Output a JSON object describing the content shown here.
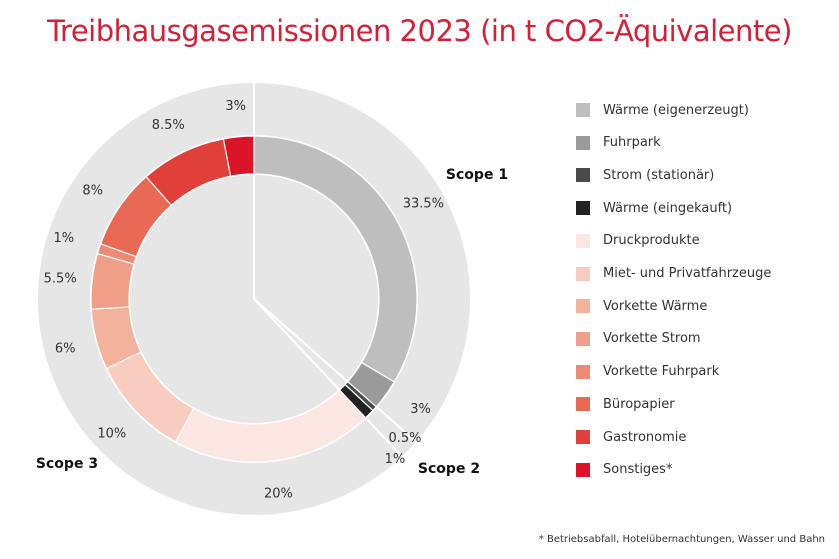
{
  "title": "Treibhausgasemissionen 2023 (in t CO2-Äquivalente)",
  "footnote": "*  Betriebsabfall, Hotelübernachtungen, Wasser und Bahn",
  "chart_data": {
    "type": "pie",
    "subtype": "double-donut",
    "title": "Treibhausgasemissionen 2023 (in t CO2-Äquivalente)",
    "legend_position": "right",
    "slices": [
      {
        "label": "Wärme (eigenerzeugt)",
        "value": 33.5,
        "display": "33.5%",
        "scope": "Scope 1",
        "color": "#bebebe"
      },
      {
        "label": "Fuhrpark",
        "value": 3,
        "display": "3%",
        "scope": "Scope 1",
        "color": "#9a9a9a"
      },
      {
        "label": "Strom (stationär)",
        "value": 0.5,
        "display": "0.5%",
        "scope": "Scope 2",
        "color": "#4a4a4a"
      },
      {
        "label": "Wärme (eingekauft)",
        "value": 1,
        "display": "1%",
        "scope": "Scope 2",
        "color": "#222222"
      },
      {
        "label": "Druckprodukte",
        "value": 20,
        "display": "20%",
        "scope": "Scope 3",
        "color": "#fbe6e2"
      },
      {
        "label": "Miet- und Privatfahrzeuge",
        "value": 10,
        "display": "10%",
        "scope": "Scope 3",
        "color": "#f8cdbf"
      },
      {
        "label": "Vorkette Wärme",
        "value": 6,
        "display": "6%",
        "scope": "Scope 3",
        "color": "#f2b29c"
      },
      {
        "label": "Vorkette Strom",
        "value": 5.5,
        "display": "5.5%",
        "scope": "Scope 3",
        "color": "#ef9f88"
      },
      {
        "label": "Vorkette Fuhrpark",
        "value": 1,
        "display": "1%",
        "scope": "Scope 3",
        "color": "#ec8a76"
      },
      {
        "label": "Büropapier",
        "value": 8,
        "display": "8%",
        "scope": "Scope 3",
        "color": "#e86a55"
      },
      {
        "label": "Gastronomie",
        "value": 8.5,
        "display": "8.5%",
        "scope": "Scope 3",
        "color": "#e1403a"
      },
      {
        "label": "Sonstiges*",
        "value": 3,
        "display": "3%",
        "scope": "Scope 3",
        "color": "#dc1428"
      }
    ],
    "scopes": [
      {
        "label": "Scope 1",
        "value": 36.5
      },
      {
        "label": "Scope 2",
        "value": 1.5
      },
      {
        "label": "Scope 3",
        "value": 62
      }
    ]
  },
  "colors": {
    "title": "#d81e35",
    "outer_ring": "#e6e6e6",
    "inner_disc": "#e6e6e6",
    "separator": "#ffffff"
  }
}
